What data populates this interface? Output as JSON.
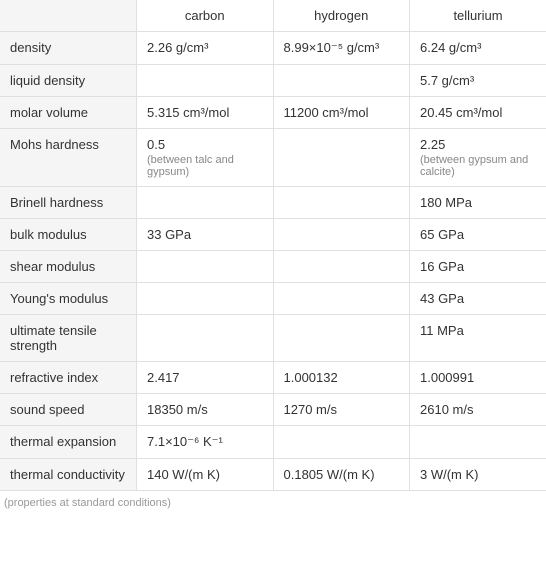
{
  "headers": {
    "carbon": "carbon",
    "hydrogen": "hydrogen",
    "tellurium": "tellurium"
  },
  "rows": {
    "density": {
      "label": "density",
      "carbon": "2.26 g/cm³",
      "hydrogen": "8.99×10⁻⁵ g/cm³",
      "tellurium": "6.24 g/cm³"
    },
    "liquid_density": {
      "label": "liquid density",
      "carbon": "",
      "hydrogen": "",
      "tellurium": "5.7 g/cm³"
    },
    "molar_volume": {
      "label": "molar volume",
      "carbon": "5.315 cm³/mol",
      "hydrogen": "11200 cm³/mol",
      "tellurium": "20.45 cm³/mol"
    },
    "mohs_hardness": {
      "label": "Mohs hardness",
      "carbon": "0.5",
      "carbon_sub": "(between talc and gypsum)",
      "hydrogen": "",
      "tellurium": "2.25",
      "tellurium_sub": "(between gypsum and calcite)"
    },
    "brinell_hardness": {
      "label": "Brinell hardness",
      "carbon": "",
      "hydrogen": "",
      "tellurium": "180 MPa"
    },
    "bulk_modulus": {
      "label": "bulk modulus",
      "carbon": "33 GPa",
      "hydrogen": "",
      "tellurium": "65 GPa"
    },
    "shear_modulus": {
      "label": "shear modulus",
      "carbon": "",
      "hydrogen": "",
      "tellurium": "16 GPa"
    },
    "youngs_modulus": {
      "label": "Young's modulus",
      "carbon": "",
      "hydrogen": "",
      "tellurium": "43 GPa"
    },
    "ultimate_tensile": {
      "label": "ultimate tensile strength",
      "carbon": "",
      "hydrogen": "",
      "tellurium": "11 MPa"
    },
    "refractive_index": {
      "label": "refractive index",
      "carbon": "2.417",
      "hydrogen": "1.000132",
      "tellurium": "1.000991"
    },
    "sound_speed": {
      "label": "sound speed",
      "carbon": "18350 m/s",
      "hydrogen": "1270 m/s",
      "tellurium": "2610 m/s"
    },
    "thermal_expansion": {
      "label": "thermal expansion",
      "carbon": "7.1×10⁻⁶ K⁻¹",
      "hydrogen": "",
      "tellurium": ""
    },
    "thermal_conductivity": {
      "label": "thermal conductivity",
      "carbon": "140 W/(m K)",
      "hydrogen": "0.1805 W/(m K)",
      "tellurium": "3 W/(m K)"
    }
  },
  "footnote": "(properties at standard conditions)",
  "colors": {
    "border": "#e0e0e0",
    "row_header_bg": "#f5f5f5",
    "text": "#333333",
    "subtext": "#888888",
    "footnote": "#999999"
  }
}
